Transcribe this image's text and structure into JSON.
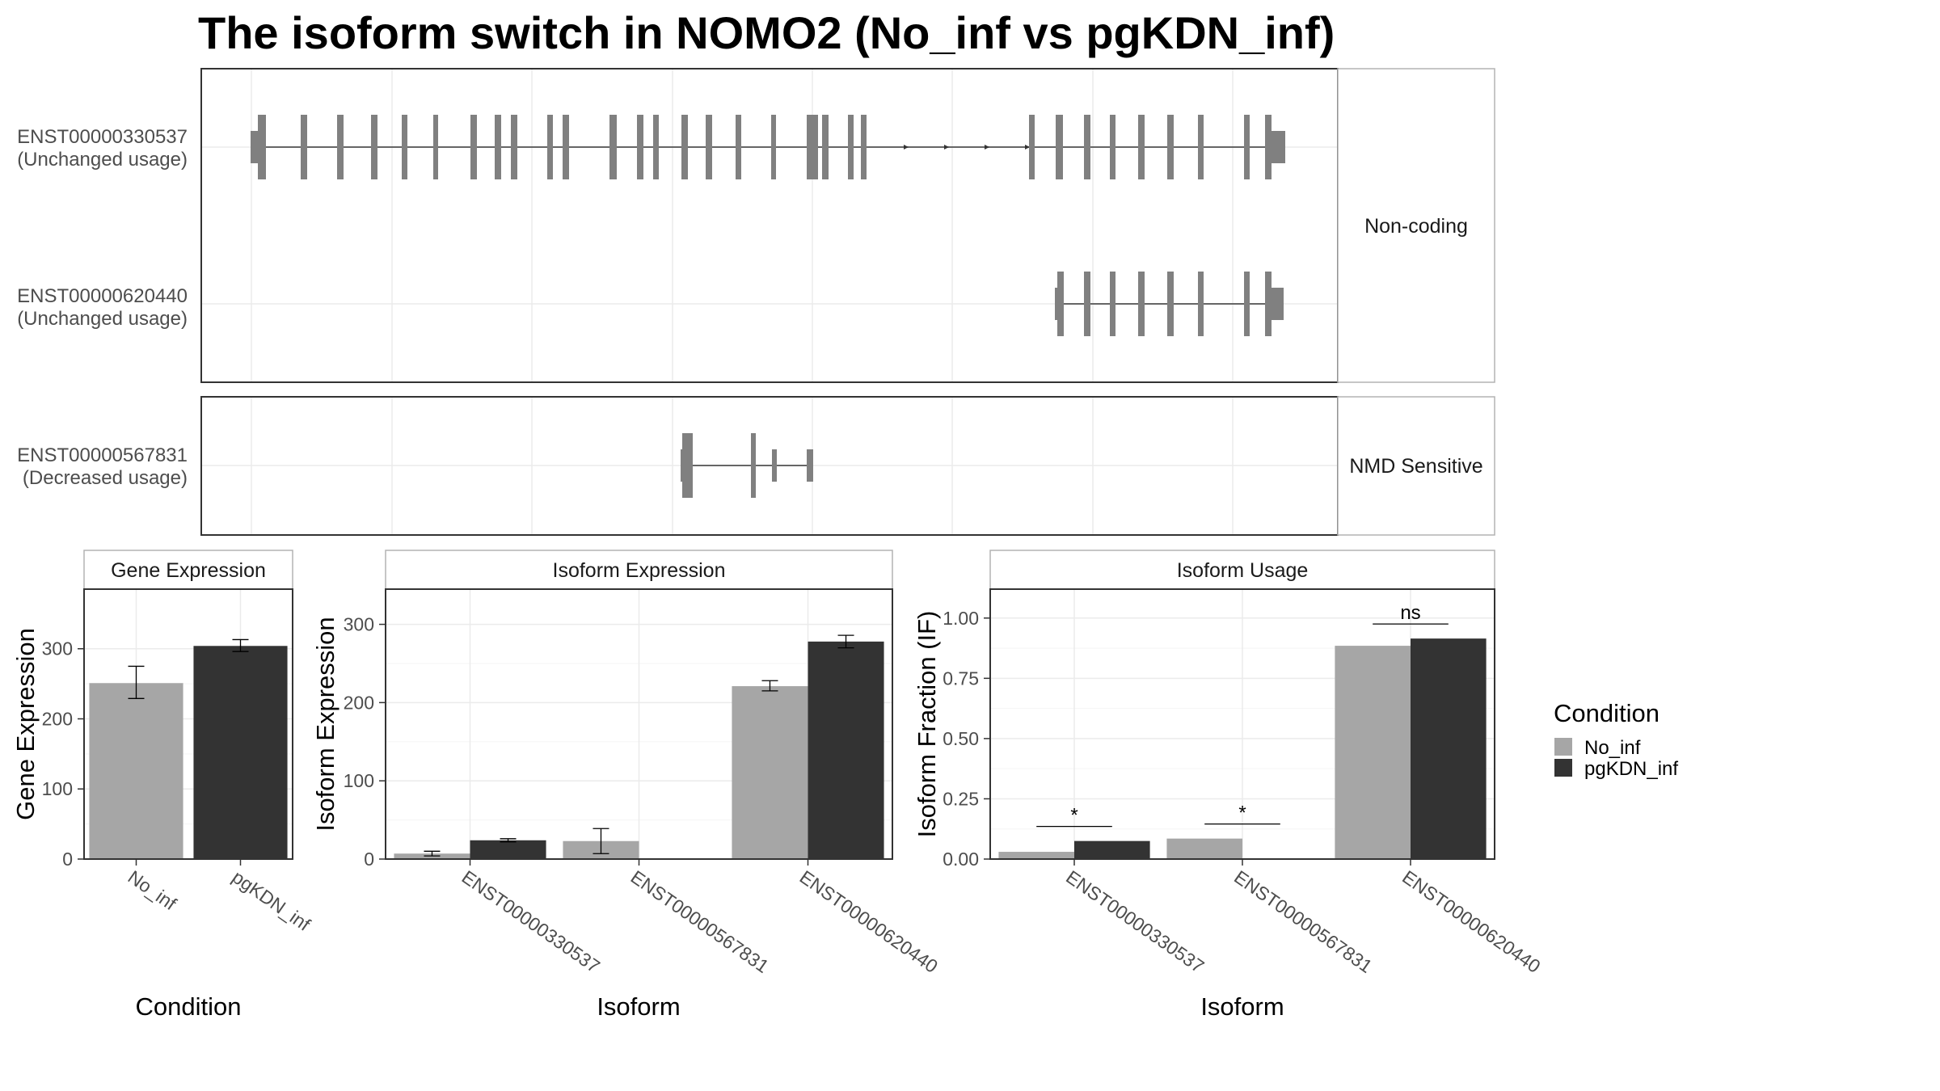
{
  "title": "The isoform switch in NOMO2 (No_inf vs pgKDN_inf)",
  "colors": {
    "No_inf": "#a6a6a6",
    "pgKDN_inf": "#333333",
    "exon": "#808080",
    "grid": "#ebebeb",
    "panel_border": "#333333",
    "strip_border": "#b3b3b3"
  },
  "structure": {
    "panels": [
      {
        "strip": "Non-coding",
        "transcripts": [
          {
            "id": "ENST00000330537",
            "usage": "(Unchanged usage)"
          },
          {
            "id": "ENST00000620440",
            "usage": "(Unchanged usage)"
          }
        ]
      },
      {
        "strip": "NMD Sensitive",
        "transcripts": [
          {
            "id": "ENST00000567831",
            "usage": "(Decreased usage)"
          }
        ]
      }
    ]
  },
  "chart_data": [
    {
      "type": "bar",
      "panel": "Gene Expression",
      "categories": [
        "No_inf",
        "pgKDN_inf"
      ],
      "values": [
        251,
        304
      ],
      "errors": [
        [
          229,
          275
        ],
        [
          296,
          313
        ]
      ],
      "xlabel": "Condition",
      "ylabel": "Gene Expression",
      "ylim": [
        0,
        385
      ],
      "yticks": [
        "0",
        "100",
        "200",
        "300"
      ]
    },
    {
      "type": "bar",
      "panel": "Isoform Expression",
      "categories": [
        "ENST00000330537",
        "ENST00000567831",
        "ENST00000620440"
      ],
      "series": [
        {
          "name": "No_inf",
          "values": [
            7,
            23,
            221
          ],
          "errors": [
            [
              4,
              10
            ],
            [
              7,
              39
            ],
            [
              215,
              228
            ]
          ]
        },
        {
          "name": "pgKDN_inf",
          "values": [
            24,
            0,
            278
          ],
          "errors": [
            [
              22,
              26
            ],
            [
              0,
              0
            ],
            [
              270,
              286
            ]
          ]
        }
      ],
      "xlabel": "Isoform",
      "ylabel": "Isoform Expression",
      "ylim": [
        0,
        345
      ],
      "yticks": [
        "0",
        "100",
        "200",
        "300"
      ]
    },
    {
      "type": "bar",
      "panel": "Isoform Usage",
      "categories": [
        "ENST00000330537",
        "ENST00000567831",
        "ENST00000620440"
      ],
      "series": [
        {
          "name": "No_inf",
          "values": [
            0.03,
            0.085,
            0.885
          ]
        },
        {
          "name": "pgKDN_inf",
          "values": [
            0.075,
            0.0,
            0.915
          ]
        }
      ],
      "significance": [
        "*",
        "*",
        "ns"
      ],
      "xlabel": "Isoform",
      "ylabel": "Isoform Fraction (IF)",
      "ylim": [
        0,
        1.12
      ],
      "yticks": [
        "0.00",
        "0.25",
        "0.50",
        "0.75",
        "1.00"
      ]
    }
  ],
  "legend": {
    "title": "Condition",
    "items": [
      "No_inf",
      "pgKDN_inf"
    ]
  }
}
